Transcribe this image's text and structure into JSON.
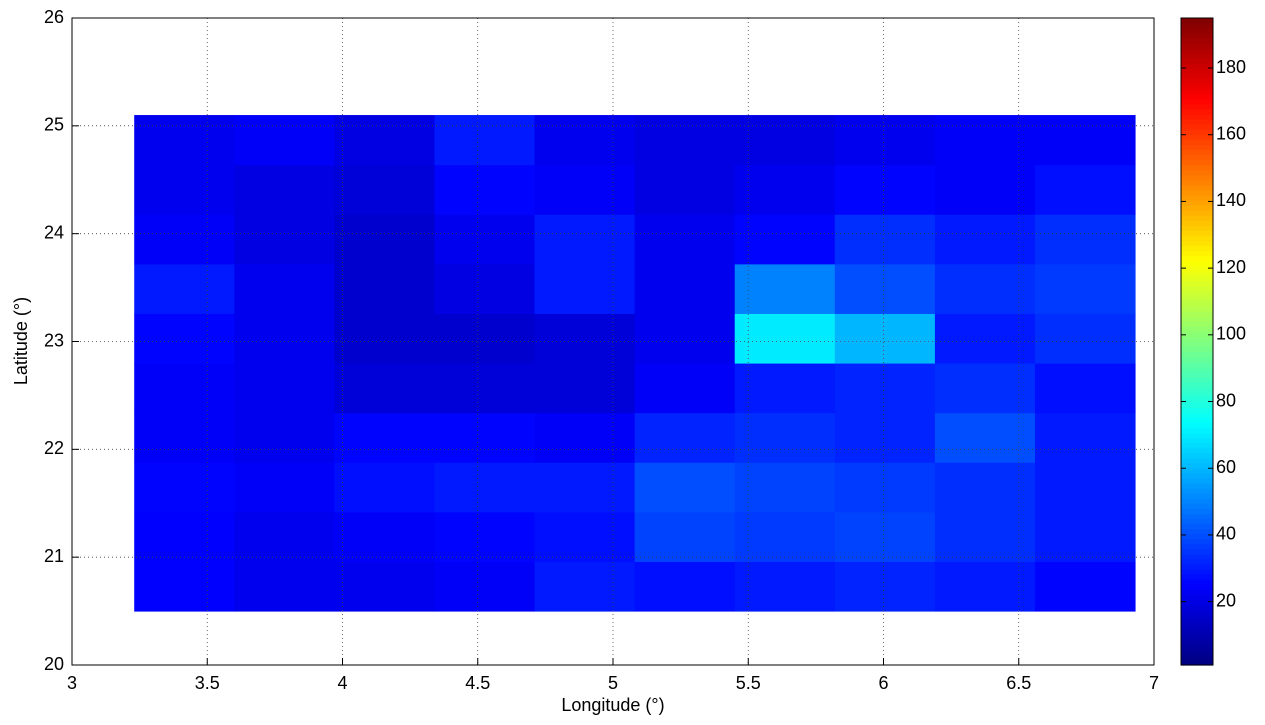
{
  "chart_data": {
    "type": "heatmap",
    "xlabel": "Longitude (°)",
    "ylabel": "Latitude (°)",
    "xlim": [
      3,
      7
    ],
    "xticks": [
      3,
      3.5,
      4,
      4.5,
      5,
      5.5,
      6,
      6.5,
      7
    ],
    "ylim": [
      20,
      26
    ],
    "yticks": [
      20,
      21,
      22,
      23,
      24,
      25,
      26
    ],
    "grid": true,
    "colormap": "jet",
    "clim": [
      1,
      195
    ],
    "cticks": [
      20,
      40,
      60,
      80,
      100,
      120,
      140,
      160,
      180
    ],
    "x_edges": [
      3.23,
      3.6,
      3.97,
      4.34,
      4.71,
      5.08,
      5.45,
      5.82,
      6.19,
      6.56,
      6.93
    ],
    "y_edges": [
      20.5,
      20.96,
      21.42,
      21.88,
      22.34,
      22.8,
      23.26,
      23.72,
      24.18,
      24.64,
      25.1
    ],
    "z": [
      [
        25,
        22,
        22,
        24,
        30,
        28,
        30,
        32,
        30,
        26
      ],
      [
        25,
        22,
        24,
        26,
        28,
        38,
        36,
        38,
        34,
        30
      ],
      [
        26,
        24,
        28,
        30,
        30,
        40,
        38,
        36,
        34,
        30
      ],
      [
        24,
        22,
        26,
        26,
        24,
        32,
        34,
        32,
        40,
        30
      ],
      [
        24,
        22,
        18,
        18,
        18,
        24,
        30,
        32,
        34,
        28
      ],
      [
        26,
        22,
        16,
        16,
        18,
        22,
        70,
        60,
        30,
        34
      ],
      [
        30,
        22,
        16,
        20,
        30,
        22,
        50,
        40,
        34,
        36
      ],
      [
        24,
        20,
        16,
        22,
        30,
        22,
        26,
        34,
        30,
        34
      ],
      [
        22,
        20,
        18,
        26,
        24,
        20,
        22,
        26,
        24,
        28
      ],
      [
        22,
        24,
        20,
        30,
        22,
        20,
        20,
        22,
        24,
        24
      ]
    ]
  }
}
